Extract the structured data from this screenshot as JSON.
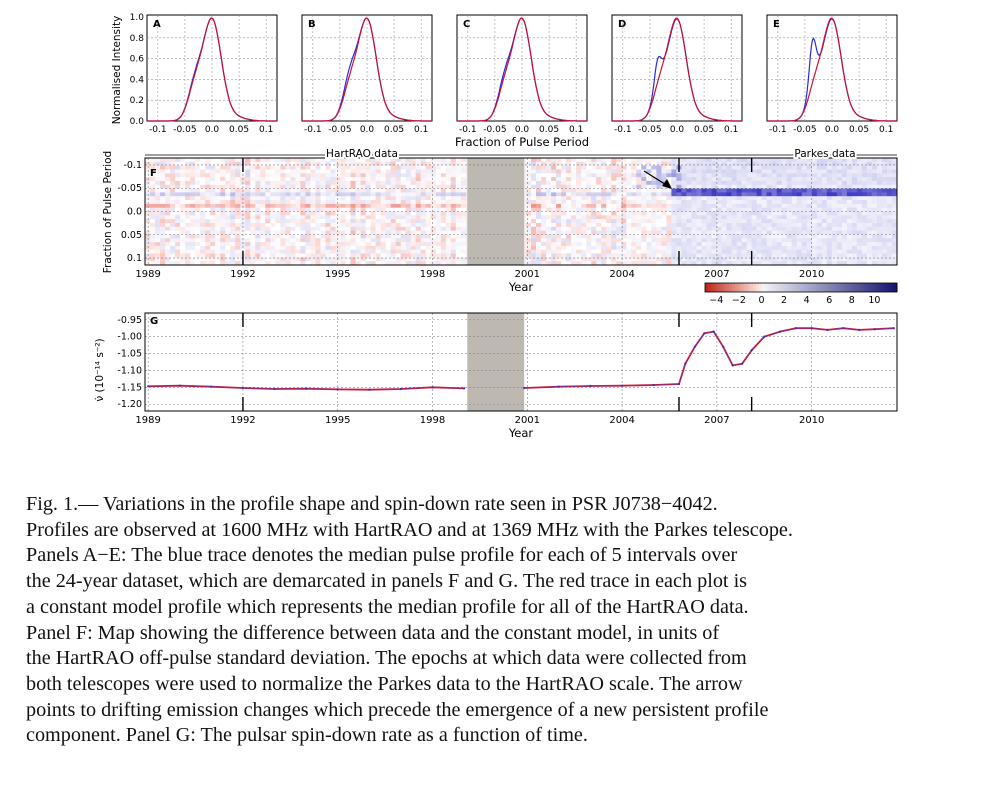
{
  "figure": {
    "top_panels": [
      {
        "label": "A",
        "dip_depth": 0.05
      },
      {
        "label": "B",
        "dip_depth": 0.15
      },
      {
        "label": "C",
        "dip_depth": 0.1
      },
      {
        "label": "D",
        "dip_depth": -0.3
      },
      {
        "label": "E",
        "dip_depth": -0.55
      }
    ],
    "top_ylabel": "Normalised Intensity",
    "top_xlabel": "Fraction of Pulse Period",
    "top_xticks": [
      "-0.1",
      "-0.05",
      "0.0",
      "0.05",
      "0.1"
    ],
    "top_yticks": [
      "0.0",
      "0.2",
      "0.4",
      "0.6",
      "0.8",
      "1.0"
    ],
    "panel_f": {
      "label": "F",
      "ylabel": "Fraction of Pulse Period",
      "yticks": [
        "-0.1",
        "-0.05",
        "0.0",
        "0.05",
        "0.1"
      ],
      "xlabel": "Year",
      "hartrao_label": "HartRAO data",
      "parkes_label": "Parkes data"
    },
    "colorbar": {
      "ticks": [
        "−4",
        "−2",
        "0",
        "2",
        "4",
        "6",
        "8",
        "10"
      ]
    },
    "panel_g": {
      "label": "G",
      "ylabel": "ν̇ (10⁻¹⁴ s⁻²)",
      "yticks": [
        "-0.95",
        "-1.00",
        "-1.05",
        "-1.10",
        "-1.15",
        "-1.20"
      ],
      "xlabel": "Year"
    },
    "year_ticks": [
      "1989",
      "1992",
      "1995",
      "1998",
      "2001",
      "2004",
      "2007",
      "2010"
    ],
    "chart_data": {
      "type": "line",
      "title": "",
      "xlabel": "Year",
      "ylabel": "ν̇ (10⁻¹⁴ s⁻²)",
      "xlim": [
        1988.9,
        2012.7
      ],
      "ylim": [
        -1.22,
        -0.93
      ],
      "x": [
        1989.0,
        1990.0,
        1991.0,
        1992.0,
        1993.0,
        1994.0,
        1995.0,
        1996.0,
        1997.0,
        1998.0,
        1999.0,
        2000.9,
        2002.0,
        2003.0,
        2004.0,
        2005.0,
        2005.8,
        2006.0,
        2006.3,
        2006.6,
        2006.9,
        2007.2,
        2007.5,
        2007.8,
        2008.1,
        2008.5,
        2009.0,
        2009.5,
        2010.0,
        2010.5,
        2011.0,
        2011.5,
        2012.0,
        2012.6
      ],
      "y": [
        -1.147,
        -1.145,
        -1.148,
        -1.152,
        -1.155,
        -1.154,
        -1.156,
        -1.157,
        -1.155,
        -1.15,
        -1.153,
        -1.152,
        -1.148,
        -1.146,
        -1.145,
        -1.143,
        -1.14,
        -1.08,
        -1.03,
        -0.99,
        -0.985,
        -1.03,
        -1.085,
        -1.08,
        -1.04,
        -1.0,
        -0.985,
        -0.975,
        -0.975,
        -0.98,
        -0.975,
        -0.98,
        -0.978,
        -0.975
      ]
    }
  },
  "caption": {
    "lines": [
      "Fig.  1.— Variations in the profile shape and spin-down rate seen in PSR J0738−4042.",
      "Profiles are observed at 1600 MHz with HartRAO and at 1369 MHz with the Parkes telescope.",
      "Panels A−E: The blue trace denotes the median pulse profile for each of 5 intervals over",
      "the 24-year dataset, which are demarcated in panels F and G. The red trace in each plot is",
      "a constant model profile which represents the median profile for all of the HartRAO data.",
      "Panel F: Map showing the difference between data and the constant model, in units of",
      "the HartRAO off-pulse standard deviation.  The epochs at which data were collected from",
      "both telescopes were used to normalize the Parkes data to the HartRAO scale.  The arrow",
      "points to drifting emission changes which precede the emergence of a new persistent profile",
      "component.  Panel G: The pulsar spin-down rate as a function of time."
    ]
  }
}
